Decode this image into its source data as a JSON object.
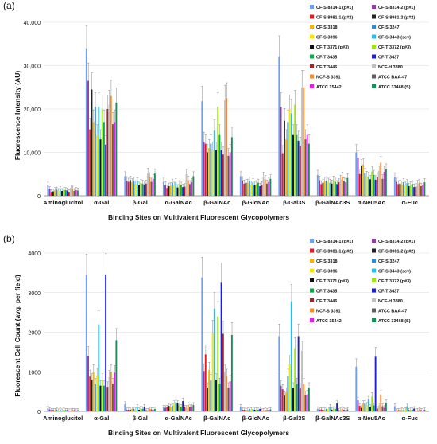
{
  "colors": {
    "background": "#ffffff",
    "grid": "#d9d9d9",
    "axis": "#7a7a7a",
    "tick_text": "#111111",
    "error_bar": "#888888"
  },
  "series_styles": [
    {
      "name": "CF-S  8314-1 (p#1)",
      "color": "#6f9ef2"
    },
    {
      "name": "CF-S  8314-2 (p#1)",
      "color": "#8f3fa3"
    },
    {
      "name": "CF-S  8981-1 (p#2)",
      "color": "#e51b24"
    },
    {
      "name": "CF-S  8981-2 (p#2)",
      "color": "#222222"
    },
    {
      "name": "CF-S  3318",
      "color": "#f4b400"
    },
    {
      "name": "CF-S  3247",
      "color": "#2b8cd6"
    },
    {
      "name": "CF-S  3396",
      "color": "#f7e600"
    },
    {
      "name": "CF-S  3443 (scv)",
      "color": "#27c1e8"
    },
    {
      "name": "CF-T  3371 (p#3)",
      "color": "#101010"
    },
    {
      "name": "CF-T  3372 (p#3)",
      "color": "#9ee21d"
    },
    {
      "name": "CF-T  3435",
      "color": "#14a44d"
    },
    {
      "name": "CF-T  3437",
      "color": "#1f1fd0"
    },
    {
      "name": "CF-T  3446",
      "color": "#a0222a"
    },
    {
      "name": "NCF-H  3380",
      "color": "#bfbfbf"
    },
    {
      "name": "NCF-S  3391",
      "color": "#f58a2b"
    },
    {
      "name": "ATCC BAA-47",
      "color": "#5e5e5e"
    },
    {
      "name": "ATCC 15442",
      "color": "#e020e8"
    },
    {
      "name": "ATCC 33468 (S)",
      "color": "#1c8c56"
    }
  ],
  "chart_data": [
    {
      "panel_label": "(a)",
      "type": "bar",
      "title": "",
      "xlabel": "Binding Sites on Multivalent Fluorescent Glycopolymers",
      "ylabel": "Fluorescence Intensity (AU)",
      "ylim": [
        0,
        40000
      ],
      "yticks": [
        "0",
        "10,000",
        "20,000",
        "30,000",
        "40,000"
      ],
      "grid": true,
      "legend_position": "top-right",
      "categories": [
        "Aminoglucitol",
        "α-Gal",
        "β-Gal",
        "α-GalNAc",
        "β-GalNAc",
        "β-GlcNAc",
        "β-Gal3S",
        "β-GalNAc3S",
        "α-Neu5Ac",
        "α-Fuc"
      ],
      "series": [
        {
          "name": "CF-S  8314-1 (p#1)",
          "values": [
            2400,
            34000,
            4500,
            3200,
            21800,
            4500,
            32000,
            4800,
            10000,
            4300
          ]
        },
        {
          "name": "CF-S  8314-2 (p#1)",
          "values": [
            1500,
            26500,
            3500,
            2500,
            12500,
            3500,
            20500,
            3600,
            8800,
            3200
          ]
        },
        {
          "name": "CF-S  8981-1 (p#2)",
          "values": [
            900,
            15300,
            3200,
            1800,
            12000,
            2800,
            9800,
            2700,
            5000,
            2700
          ]
        },
        {
          "name": "CF-S  8981-2 (p#2)",
          "values": [
            1000,
            24500,
            3600,
            2200,
            10000,
            3000,
            17300,
            3000,
            7000,
            2800
          ]
        },
        {
          "name": "CF-S  3318",
          "values": [
            1300,
            17000,
            3100,
            2300,
            11000,
            3000,
            13000,
            3400,
            7200,
            2600
          ]
        },
        {
          "name": "CF-S  3247",
          "values": [
            1400,
            20500,
            3400,
            3000,
            12000,
            3400,
            17000,
            3500,
            5200,
            3100
          ]
        },
        {
          "name": "CF-S  3396",
          "values": [
            1100,
            14000,
            2700,
            2400,
            10500,
            2600,
            20000,
            3200,
            4600,
            2400
          ]
        },
        {
          "name": "CF-S  3443 (scv)",
          "values": [
            1500,
            20500,
            3300,
            3100,
            15000,
            3100,
            19000,
            3000,
            4400,
            2900
          ]
        },
        {
          "name": "CF-T  3371 (p#3)",
          "values": [
            1100,
            13000,
            2400,
            1900,
            10500,
            2400,
            14000,
            2800,
            3800,
            2200
          ]
        },
        {
          "name": "CF-T  3372 (p#3)",
          "values": [
            1400,
            20000,
            3000,
            2700,
            20500,
            2700,
            21000,
            3600,
            5600,
            2500
          ]
        },
        {
          "name": "CF-T  3435",
          "values": [
            1300,
            17000,
            2800,
            2400,
            14000,
            3000,
            14000,
            3200,
            4800,
            2700
          ]
        },
        {
          "name": "CF-T  3437",
          "values": [
            1200,
            11800,
            2600,
            2000,
            10500,
            2200,
            12700,
            2700,
            3700,
            2000
          ]
        },
        {
          "name": "CF-T  3446",
          "values": [
            900,
            20000,
            2800,
            2100,
            9500,
            2500,
            11500,
            3100,
            4300,
            2100
          ]
        },
        {
          "name": "NCF-H  3380",
          "values": [
            1800,
            21000,
            5200,
            5000,
            22000,
            4400,
            25000,
            3800,
            5700,
            2800
          ]
        },
        {
          "name": "NCF-S  3391",
          "values": [
            1600,
            23000,
            4300,
            3600,
            22500,
            3800,
            25000,
            4400,
            7600,
            3000
          ]
        },
        {
          "name": "ATCC BAA-47",
          "values": [
            1100,
            16500,
            3200,
            2700,
            9200,
            2800,
            13000,
            3300,
            3900,
            2200
          ]
        },
        {
          "name": "ATCC 15442",
          "values": [
            1300,
            17000,
            3900,
            3100,
            10000,
            3200,
            14000,
            3100,
            5500,
            2600
          ]
        },
        {
          "name": "ATCC 33468 (S)",
          "values": [
            1200,
            21500,
            5100,
            4500,
            13500,
            3900,
            12000,
            4100,
            6100,
            3100
          ]
        }
      ]
    },
    {
      "panel_label": "(b)",
      "type": "bar",
      "title": "",
      "xlabel": "Binding Sites on Multivalent Fluorescent Glycopolymers",
      "ylabel": "Fluorescent Cell Count  (avg. per field)",
      "ylim": [
        0,
        4000
      ],
      "yticks": [
        "0",
        "1000",
        "2000",
        "3000",
        "4000"
      ],
      "grid": true,
      "legend_position": "top-right",
      "categories": [
        "Aminoglucitol",
        "α-Gal",
        "β-Gal",
        "α-GalNAc",
        "β-GalNAc",
        "β-GlcNAc",
        "β-Gal3S",
        "β-GalNAc3S",
        "α-Neu5Ac",
        "α-Fuc"
      ],
      "series": [
        {
          "name": "CF-S  8314-1 (p#1)",
          "values": [
            80,
            3450,
            180,
            100,
            3380,
            120,
            1900,
            60,
            1130,
            130
          ]
        },
        {
          "name": "CF-S  8314-2 (p#1)",
          "values": [
            50,
            1400,
            40,
            90,
            1020,
            40,
            650,
            40,
            280,
            20
          ]
        },
        {
          "name": "CF-S  8981-1 (p#2)",
          "values": [
            30,
            880,
            40,
            100,
            1440,
            40,
            560,
            50,
            140,
            30
          ]
        },
        {
          "name": "CF-S  8981-2 (p#2)",
          "values": [
            30,
            800,
            40,
            140,
            600,
            30,
            400,
            40,
            90,
            30
          ]
        },
        {
          "name": "CF-S  3318",
          "values": [
            30,
            1000,
            60,
            120,
            1050,
            40,
            480,
            40,
            200,
            40
          ]
        },
        {
          "name": "CF-S  3247",
          "values": [
            40,
            700,
            60,
            140,
            780,
            60,
            900,
            60,
            200,
            30
          ]
        },
        {
          "name": "CF-S  3396",
          "values": [
            20,
            920,
            40,
            200,
            1980,
            50,
            1200,
            60,
            160,
            50
          ]
        },
        {
          "name": "CF-S  3443 (scv)",
          "values": [
            40,
            2200,
            120,
            230,
            2600,
            60,
            2780,
            120,
            300,
            130
          ]
        },
        {
          "name": "CF-T  3371 (p#3)",
          "values": [
            20,
            650,
            40,
            200,
            800,
            40,
            600,
            40,
            110,
            30
          ]
        },
        {
          "name": "CF-T  3372 (p#3)",
          "values": [
            40,
            800,
            80,
            150,
            2400,
            40,
            1600,
            70,
            380,
            40
          ]
        },
        {
          "name": "CF-T  3435",
          "values": [
            30,
            650,
            60,
            120,
            700,
            40,
            700,
            60,
            150,
            40
          ]
        },
        {
          "name": "CF-T  3437",
          "values": [
            30,
            3460,
            120,
            260,
            3250,
            60,
            1900,
            200,
            1380,
            70
          ]
        },
        {
          "name": "CF-T  3446",
          "values": [
            20,
            620,
            30,
            100,
            1960,
            20,
            580,
            30,
            70,
            20
          ]
        },
        {
          "name": "NCF-H  3380",
          "values": [
            20,
            870,
            30,
            90,
            990,
            30,
            1530,
            40,
            150,
            30
          ]
        },
        {
          "name": "NCF-S  3391",
          "values": [
            30,
            1000,
            60,
            160,
            900,
            40,
            700,
            70,
            430,
            50
          ]
        },
        {
          "name": "ATCC BAA-47",
          "values": [
            30,
            700,
            50,
            110,
            600,
            30,
            420,
            40,
            130,
            30
          ]
        },
        {
          "name": "ATCC 15442",
          "values": [
            20,
            980,
            40,
            120,
            760,
            40,
            430,
            30,
            90,
            20
          ]
        },
        {
          "name": "ATCC 33468 (S)",
          "values": [
            30,
            1800,
            60,
            160,
            1930,
            50,
            600,
            50,
            220,
            40
          ]
        }
      ]
    }
  ]
}
